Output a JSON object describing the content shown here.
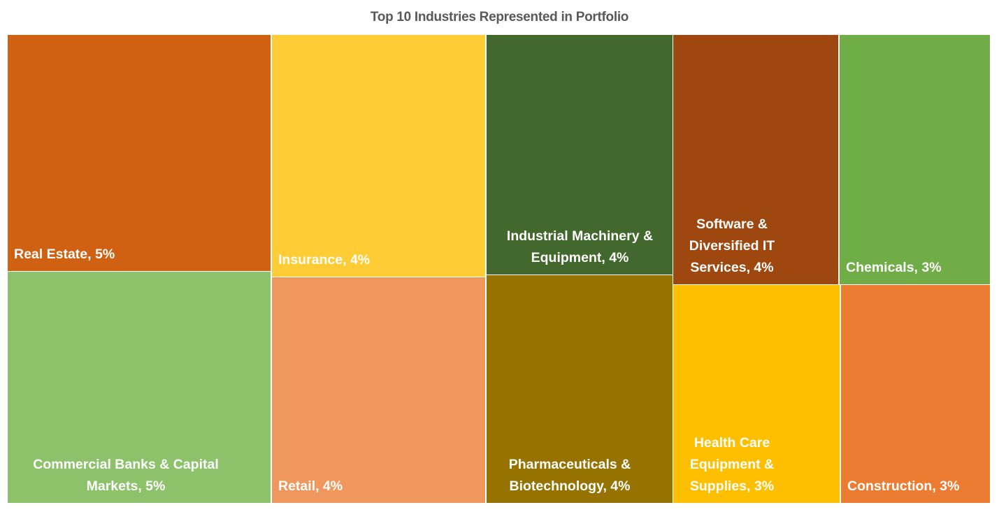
{
  "chart_data": {
    "type": "treemap",
    "title": "Top 10 Industries Represented in Portfolio",
    "items": [
      {
        "name": "Real Estate",
        "value": 5,
        "label": "Real Estate, 5%",
        "color": "#D06012"
      },
      {
        "name": "Commercial Banks & Capital Markets",
        "value": 5,
        "label": "Commercial Banks & Capital Markets, 5%",
        "color": "#8DC16A"
      },
      {
        "name": "Insurance",
        "value": 4,
        "label": "Insurance, 4%",
        "color": "#FECC35"
      },
      {
        "name": "Retail",
        "value": 4,
        "label": "Retail, 4%",
        "color": "#EF975C"
      },
      {
        "name": "Industrial Machinery & Equipment",
        "value": 4,
        "label": "Industrial Machinery & Equipment, 4%",
        "color": "#43682D"
      },
      {
        "name": "Pharmaceuticals & Biotechnology",
        "value": 4,
        "label": "Pharmaceuticals & Biotechnology, 4%",
        "color": "#967300"
      },
      {
        "name": "Software & Diversified IT Services",
        "value": 4,
        "label": "Software & Diversified IT Services, 4%",
        "color": "#9E470E"
      },
      {
        "name": "Health Care Equipment & Supplies",
        "value": 3,
        "label": "Health Care Equipment & Supplies, 3%",
        "color": "#FEBF00"
      },
      {
        "name": "Chemicals",
        "value": 3,
        "label": "Chemicals, 3%",
        "color": "#70AD47"
      },
      {
        "name": "Construction",
        "value": 3,
        "label": "Construction, 3%",
        "color": "#EC7C31"
      }
    ]
  }
}
